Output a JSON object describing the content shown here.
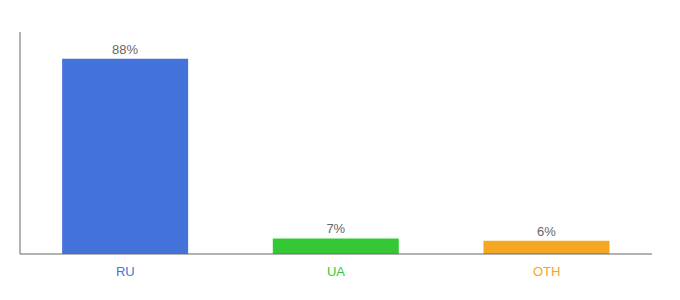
{
  "chart_data": {
    "type": "bar",
    "categories": [
      "RU",
      "UA",
      "OTH"
    ],
    "values": [
      88,
      7,
      6
    ],
    "value_labels": [
      "88%",
      "7%",
      "6%"
    ],
    "colors": [
      "#4472db",
      "#34c934",
      "#f5a623"
    ],
    "ylim": [
      0,
      100
    ],
    "data_labels": true,
    "tick_labels": "x",
    "grid": false
  }
}
